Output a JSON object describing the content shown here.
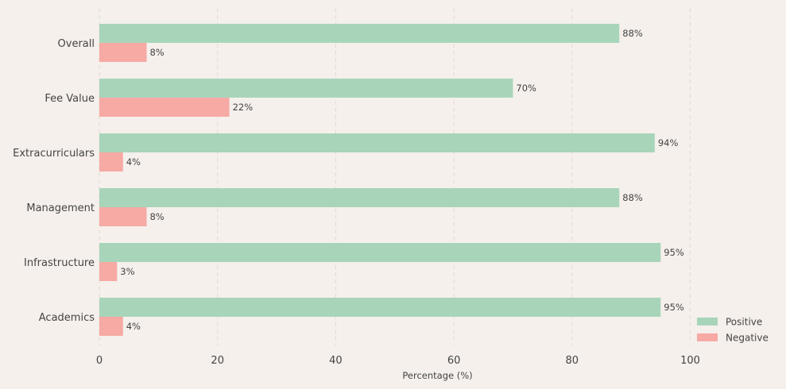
{
  "chart_data": {
    "type": "bar",
    "orientation": "horizontal",
    "categories": [
      "Overall",
      "Fee Value",
      "Extracurriculars",
      "Management",
      "Infrastructure",
      "Academics"
    ],
    "series": [
      {
        "name": "Positive",
        "values": [
          88,
          70,
          94,
          88,
          95,
          95
        ],
        "color": "#a8d5ba"
      },
      {
        "name": "Negative",
        "values": [
          8,
          22,
          4,
          8,
          3,
          4
        ],
        "color": "#f7a9a4"
      }
    ],
    "value_suffix": "%",
    "title": "",
    "xlabel": "Percentage (%)",
    "ylabel": "",
    "xlim": [
      0,
      115
    ],
    "xticks": [
      0,
      20,
      40,
      60,
      80,
      100
    ],
    "grid": "vertical dashed",
    "legend_position": "bottom-right"
  }
}
